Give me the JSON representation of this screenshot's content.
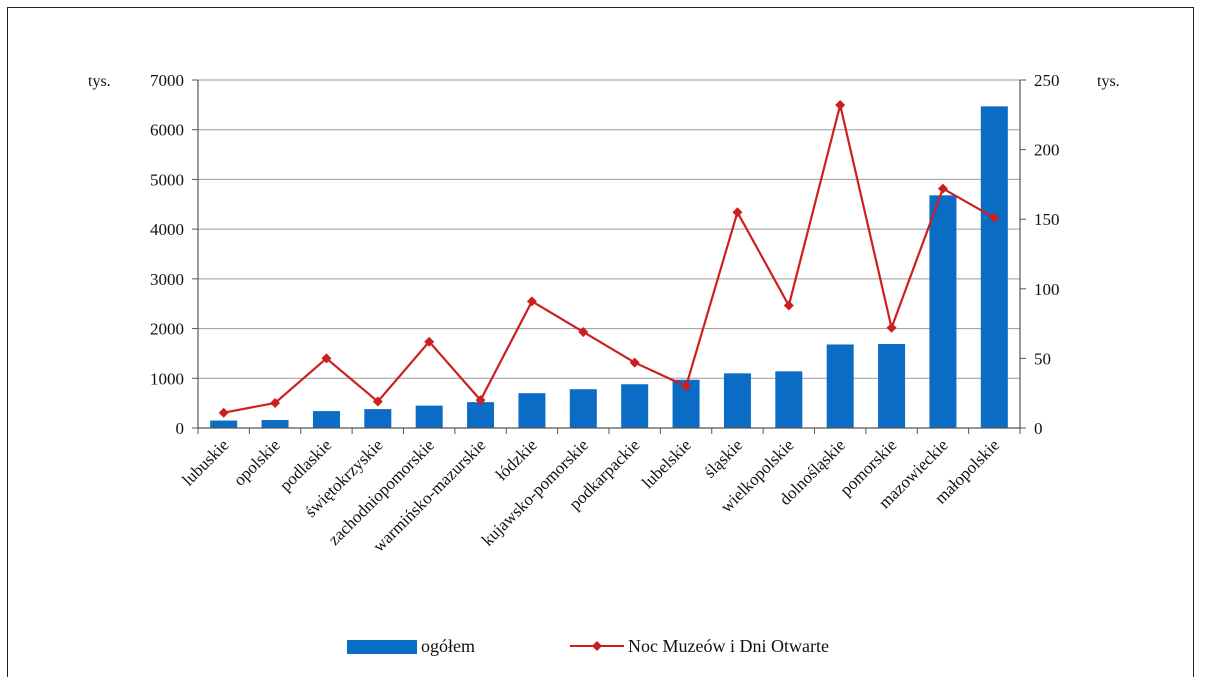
{
  "chart_data": {
    "type": "bar+line",
    "title": "",
    "categories": [
      "lubuskie",
      "opolskie",
      "podlaskie",
      "świętokrzyskie",
      "zachodniopomorskie",
      "warmińsko-mazurskie",
      "łódzkie",
      "kujawsko-pomorskie",
      "podkarpackie",
      "lubelskie",
      "śląskie",
      "wielkopolskie",
      "dolnośląskie",
      "pomorskie",
      "mazowieckie",
      "małopolskie"
    ],
    "series": [
      {
        "name": "ogółem",
        "type": "bar",
        "axis": "left",
        "color": "#0a6cc4",
        "values": [
          150,
          160,
          340,
          380,
          450,
          520,
          700,
          780,
          880,
          970,
          1100,
          1140,
          1680,
          1690,
          4680,
          6470
        ]
      },
      {
        "name": "Noc Muzeów i Dni Otwarte",
        "type": "line",
        "axis": "right",
        "color": "#cc1f1f",
        "values": [
          11,
          18,
          50,
          19,
          62,
          20,
          91,
          69,
          47,
          30,
          155,
          88,
          232,
          72,
          172,
          151
        ]
      }
    ],
    "y_left": {
      "unit": "tys.",
      "range": [
        0,
        7000
      ],
      "ticks": [
        0,
        1000,
        2000,
        3000,
        4000,
        5000,
        6000,
        7000
      ]
    },
    "y_right": {
      "unit": "tys.",
      "range": [
        0,
        250
      ],
      "ticks": [
        0,
        50,
        100,
        150,
        200,
        250
      ]
    },
    "grid": true,
    "legend": "bottom"
  }
}
